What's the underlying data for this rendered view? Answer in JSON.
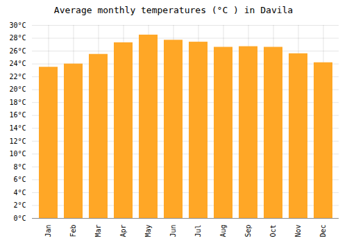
{
  "chart_data": {
    "type": "bar",
    "title": "Average monthly temperatures (°C ) in Davila",
    "categories": [
      "Jan",
      "Feb",
      "Mar",
      "Apr",
      "May",
      "Jun",
      "Jul",
      "Aug",
      "Sep",
      "Oct",
      "Nov",
      "Dec"
    ],
    "values": [
      23.5,
      24.0,
      25.5,
      27.3,
      28.5,
      27.7,
      27.4,
      26.6,
      26.7,
      26.6,
      25.6,
      24.2
    ],
    "color": "#FFA726",
    "ylim": [
      0,
      30
    ],
    "yticks": [
      {
        "value": 0,
        "label": "0°C"
      },
      {
        "value": 2,
        "label": "2°C"
      },
      {
        "value": 4,
        "label": "4°C"
      },
      {
        "value": 6,
        "label": "6°C"
      },
      {
        "value": 8,
        "label": "8°C"
      },
      {
        "value": 10,
        "label": "10°C"
      },
      {
        "value": 12,
        "label": "12°C"
      },
      {
        "value": 14,
        "label": "14°C"
      },
      {
        "value": 16,
        "label": "16°C"
      },
      {
        "value": 18,
        "label": "18°C"
      },
      {
        "value": 20,
        "label": "20°C"
      },
      {
        "value": 22,
        "label": "22°C"
      },
      {
        "value": 24,
        "label": "24°C"
      },
      {
        "value": 26,
        "label": "26°C"
      },
      {
        "value": 28,
        "label": "28°C"
      },
      {
        "value": 30,
        "label": "30°C"
      }
    ],
    "grid": true
  }
}
